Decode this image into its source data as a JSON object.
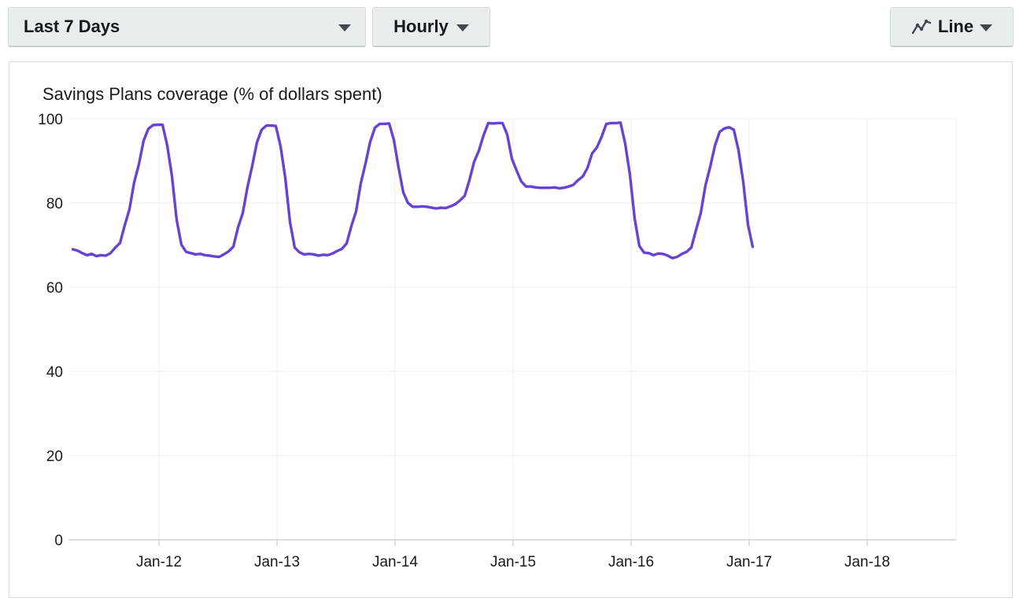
{
  "controls": {
    "range_label": "Last 7 Days",
    "granularity_label": "Hourly",
    "chart_type_label": "Line"
  },
  "chart_data": {
    "type": "line",
    "title": "Savings Plans coverage (% of dollars spent)",
    "xlabel": "",
    "ylabel": "",
    "ylim": [
      0,
      100
    ],
    "yticks": [
      0,
      20,
      40,
      60,
      80,
      100
    ],
    "x_tick_labels": [
      "Jan-12",
      "Jan-13",
      "Jan-14",
      "Jan-15",
      "Jan-16",
      "Jan-17",
      "Jan-18"
    ],
    "line_color": "#6842d1",
    "grid": true,
    "series": [
      {
        "color": "#6842d1",
        "values": [
          [
            11.27,
            69
          ],
          [
            11.31,
            68.7
          ],
          [
            11.35,
            68.1
          ],
          [
            11.39,
            67.6
          ],
          [
            11.43,
            67.9
          ],
          [
            11.47,
            67.4
          ],
          [
            11.51,
            67.6
          ],
          [
            11.55,
            67.5
          ],
          [
            11.59,
            68.1
          ],
          [
            11.63,
            69.4
          ],
          [
            11.67,
            70.5
          ],
          [
            11.71,
            74.7
          ],
          [
            11.75,
            78.5
          ],
          [
            11.79,
            84.9
          ],
          [
            11.83,
            89.2
          ],
          [
            11.87,
            94.8
          ],
          [
            11.91,
            97.6
          ],
          [
            11.95,
            98.5
          ],
          [
            11.99,
            98.6
          ],
          [
            12.03,
            98.6
          ],
          [
            12.07,
            93.7
          ],
          [
            12.11,
            86.4
          ],
          [
            12.15,
            76.0
          ],
          [
            12.19,
            70.1
          ],
          [
            12.23,
            68.4
          ],
          [
            12.27,
            68.1
          ],
          [
            12.31,
            67.8
          ],
          [
            12.35,
            67.9
          ],
          [
            12.39,
            67.6
          ],
          [
            12.43,
            67.5
          ],
          [
            12.47,
            67.3
          ],
          [
            12.51,
            67.2
          ],
          [
            12.55,
            67.8
          ],
          [
            12.59,
            68.5
          ],
          [
            12.63,
            69.6
          ],
          [
            12.67,
            74.2
          ],
          [
            12.71,
            77.6
          ],
          [
            12.75,
            83.8
          ],
          [
            12.79,
            88.8
          ],
          [
            12.83,
            94.4
          ],
          [
            12.87,
            97.4
          ],
          [
            12.91,
            98.4
          ],
          [
            12.95,
            98.4
          ],
          [
            12.99,
            98.3
          ],
          [
            13.03,
            93.5
          ],
          [
            13.07,
            86.0
          ],
          [
            13.11,
            75.5
          ],
          [
            13.15,
            69.4
          ],
          [
            13.19,
            68.3
          ],
          [
            13.23,
            67.8
          ],
          [
            13.27,
            67.9
          ],
          [
            13.31,
            67.8
          ],
          [
            13.35,
            67.5
          ],
          [
            13.39,
            67.7
          ],
          [
            13.43,
            67.6
          ],
          [
            13.47,
            68.0
          ],
          [
            13.51,
            68.6
          ],
          [
            13.55,
            69.1
          ],
          [
            13.59,
            70.4
          ],
          [
            13.63,
            74.5
          ],
          [
            13.67,
            78.0
          ],
          [
            13.71,
            84.7
          ],
          [
            13.75,
            89.4
          ],
          [
            13.79,
            94.6
          ],
          [
            13.83,
            97.9
          ],
          [
            13.87,
            98.8
          ],
          [
            13.91,
            98.8
          ],
          [
            13.95,
            98.9
          ],
          [
            13.99,
            95.0
          ],
          [
            14.03,
            88.4
          ],
          [
            14.07,
            82.5
          ],
          [
            14.11,
            80.0
          ],
          [
            14.15,
            79.1
          ],
          [
            14.19,
            79.1
          ],
          [
            14.23,
            79.2
          ],
          [
            14.27,
            79.1
          ],
          [
            14.31,
            78.9
          ],
          [
            14.35,
            78.7
          ],
          [
            14.39,
            78.9
          ],
          [
            14.43,
            78.8
          ],
          [
            14.47,
            79.2
          ],
          [
            14.51,
            79.7
          ],
          [
            14.55,
            80.6
          ],
          [
            14.59,
            81.7
          ],
          [
            14.63,
            85.4
          ],
          [
            14.67,
            89.8
          ],
          [
            14.71,
            92.4
          ],
          [
            14.75,
            96.1
          ],
          [
            14.79,
            99.0
          ],
          [
            14.83,
            98.9
          ],
          [
            14.87,
            99.0
          ],
          [
            14.91,
            99.0
          ],
          [
            14.95,
            96.3
          ],
          [
            14.99,
            90.5
          ],
          [
            15.03,
            87.7
          ],
          [
            15.07,
            85.1
          ],
          [
            15.11,
            83.9
          ],
          [
            15.15,
            83.9
          ],
          [
            15.19,
            83.7
          ],
          [
            15.23,
            83.6
          ],
          [
            15.27,
            83.6
          ],
          [
            15.31,
            83.6
          ],
          [
            15.35,
            83.7
          ],
          [
            15.39,
            83.5
          ],
          [
            15.43,
            83.6
          ],
          [
            15.47,
            83.9
          ],
          [
            15.51,
            84.3
          ],
          [
            15.55,
            85.4
          ],
          [
            15.59,
            86.3
          ],
          [
            15.63,
            88.3
          ],
          [
            15.67,
            91.8
          ],
          [
            15.71,
            93.2
          ],
          [
            15.75,
            95.7
          ],
          [
            15.79,
            98.8
          ],
          [
            15.83,
            99.0
          ],
          [
            15.87,
            99.0
          ],
          [
            15.91,
            99.1
          ],
          [
            15.95,
            94.1
          ],
          [
            15.99,
            86.7
          ],
          [
            16.03,
            76.3
          ],
          [
            16.07,
            69.8
          ],
          [
            16.11,
            68.2
          ],
          [
            16.15,
            68.1
          ],
          [
            16.19,
            67.6
          ],
          [
            16.23,
            68.0
          ],
          [
            16.27,
            67.9
          ],
          [
            16.31,
            67.5
          ],
          [
            16.35,
            66.9
          ],
          [
            16.39,
            67.2
          ],
          [
            16.43,
            67.9
          ],
          [
            16.47,
            68.4
          ],
          [
            16.51,
            69.4
          ],
          [
            16.55,
            73.6
          ],
          [
            16.59,
            77.6
          ],
          [
            16.63,
            84.2
          ],
          [
            16.67,
            88.6
          ],
          [
            16.71,
            93.6
          ],
          [
            16.75,
            96.9
          ],
          [
            16.79,
            97.7
          ],
          [
            16.83,
            98.0
          ],
          [
            16.87,
            97.4
          ],
          [
            16.91,
            92.5
          ],
          [
            16.95,
            85.0
          ],
          [
            16.99,
            74.9
          ],
          [
            17.03,
            69.6
          ]
        ]
      }
    ]
  }
}
